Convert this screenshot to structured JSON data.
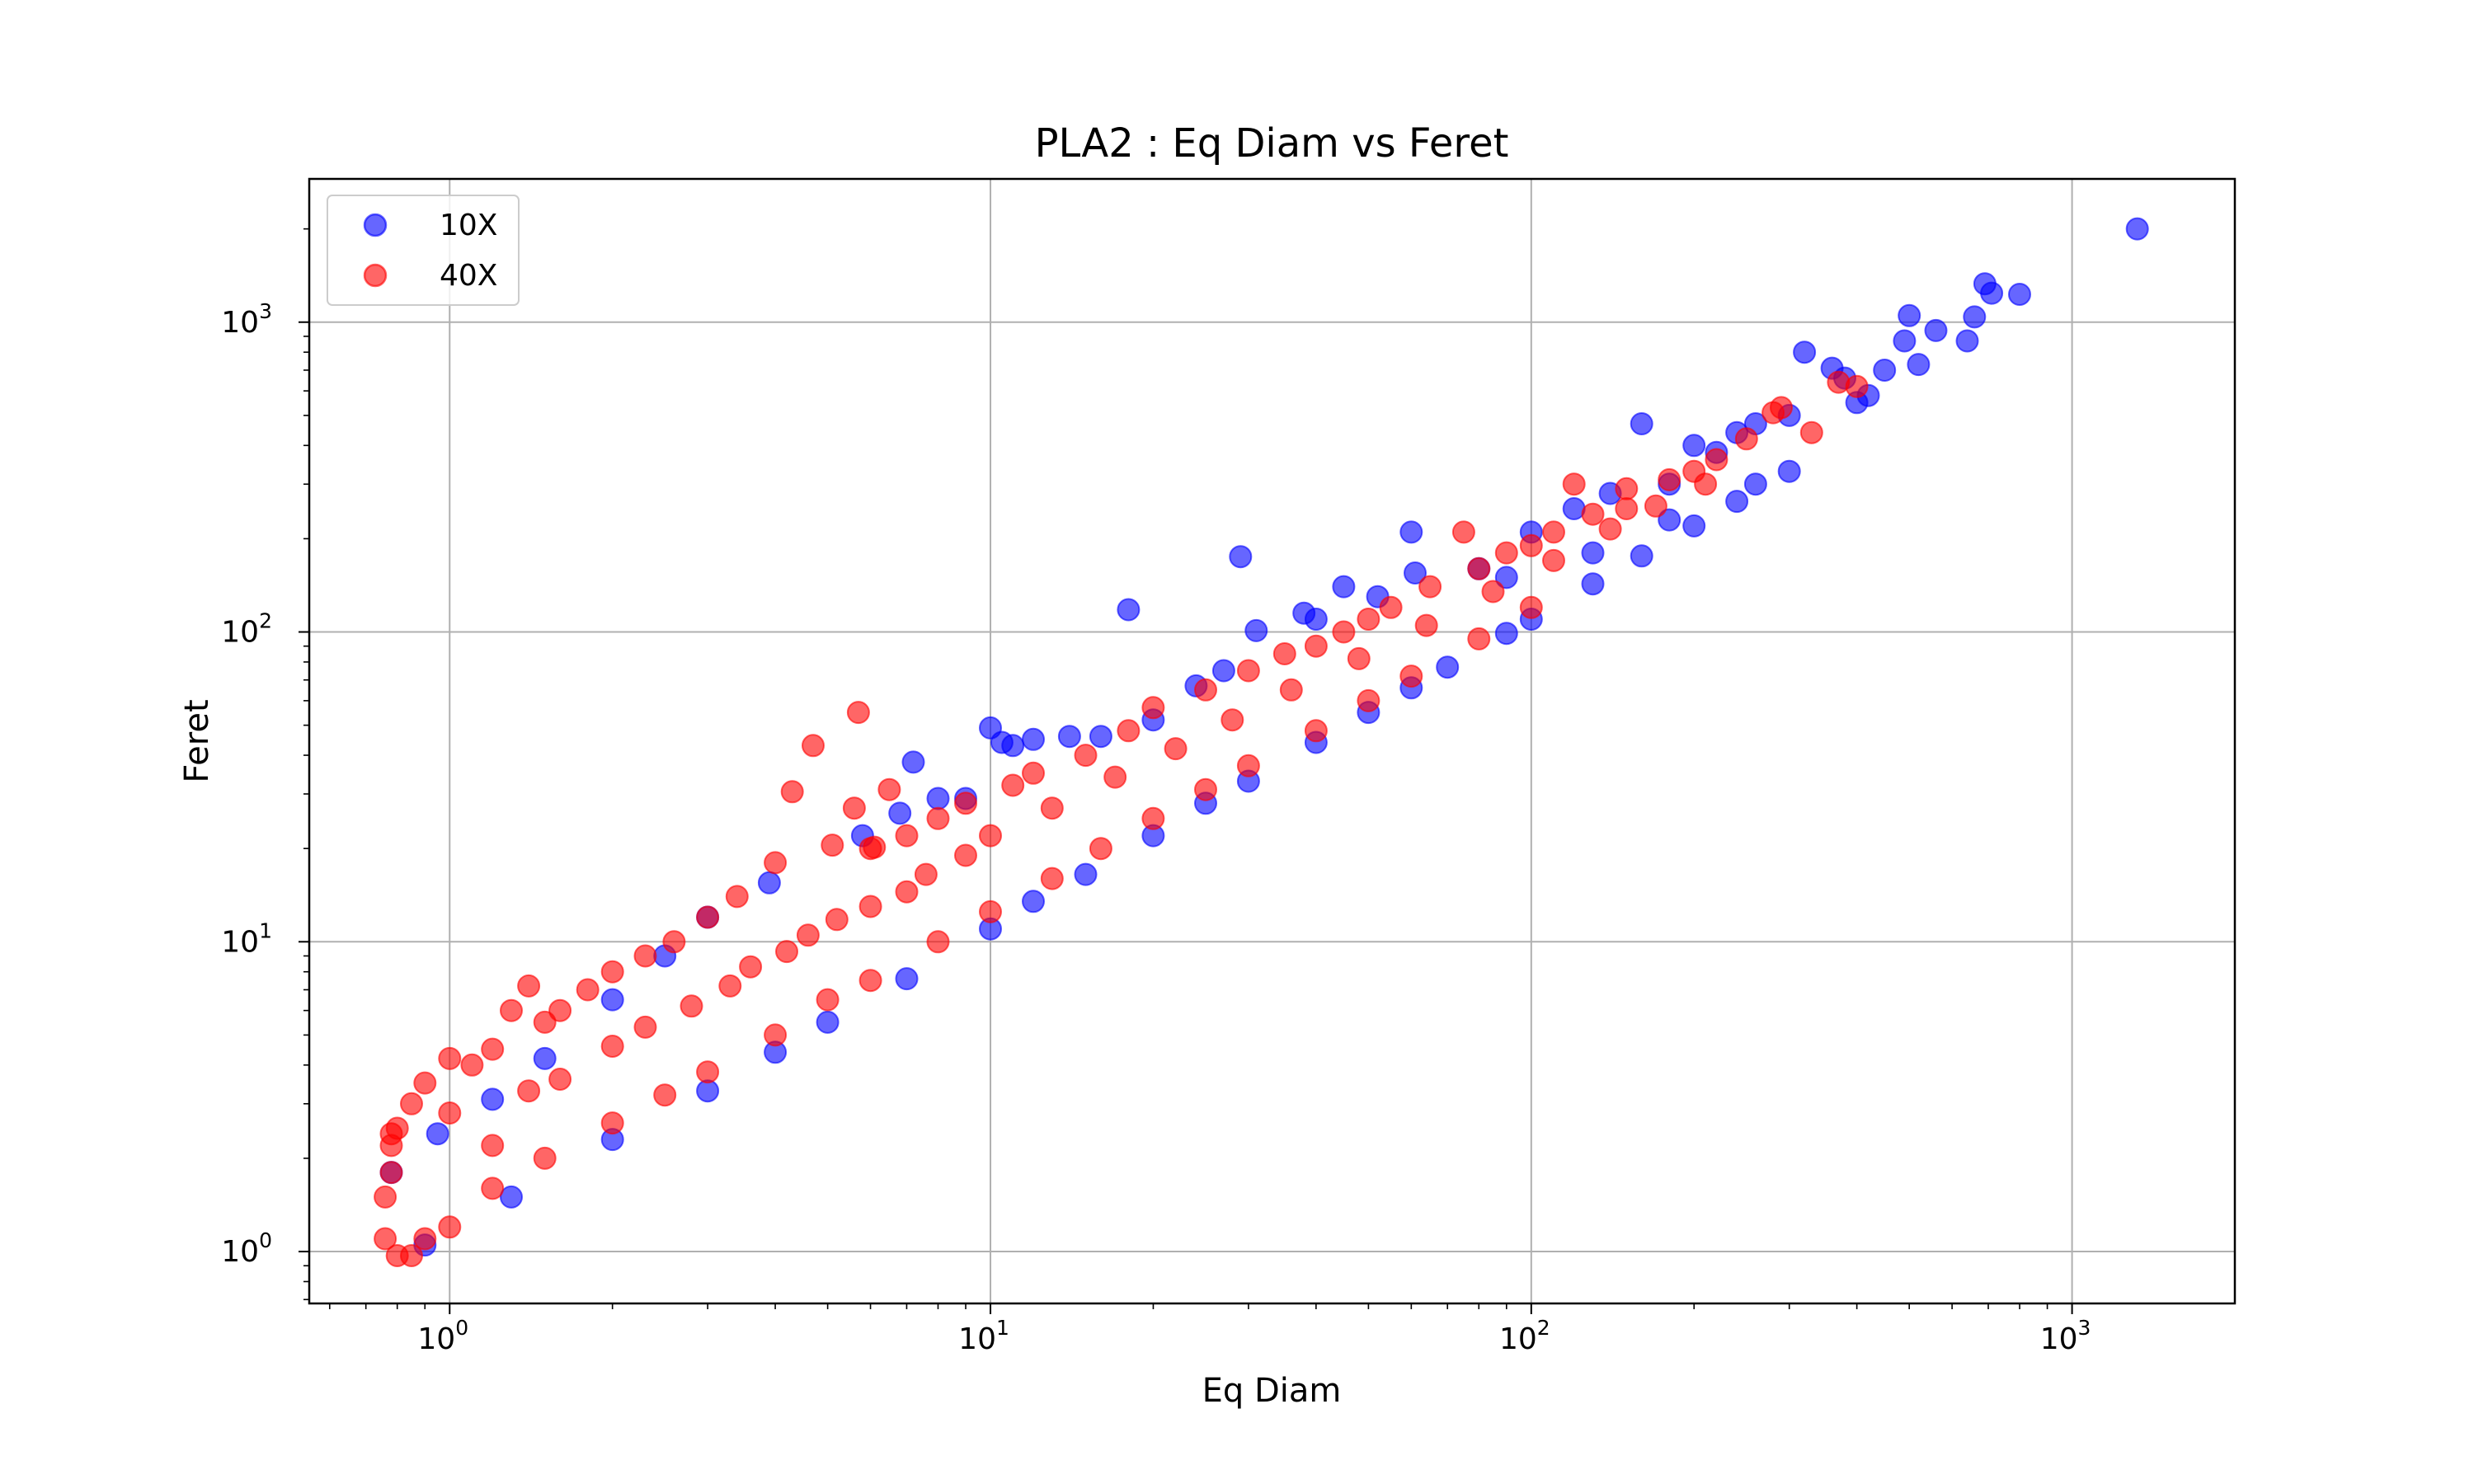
{
  "chart_data": {
    "type": "scatter",
    "title": "PLA2 : Eq Diam vs Feret",
    "xlabel": "Eq Diam",
    "ylabel": "Feret",
    "xscale": "log",
    "yscale": "log",
    "xlim": [
      0.55,
      2000
    ],
    "ylim": [
      0.68,
      2900
    ],
    "grid": true,
    "legend_position": "upper-left",
    "x_ticks": [
      {
        "base": "10",
        "exp": "0",
        "value": 1
      },
      {
        "base": "10",
        "exp": "1",
        "value": 10
      },
      {
        "base": "10",
        "exp": "2",
        "value": 100
      },
      {
        "base": "10",
        "exp": "3",
        "value": 1000
      }
    ],
    "y_ticks": [
      {
        "base": "10",
        "exp": "0",
        "value": 1
      },
      {
        "base": "10",
        "exp": "1",
        "value": 10
      },
      {
        "base": "10",
        "exp": "2",
        "value": 100
      },
      {
        "base": "10",
        "exp": "3",
        "value": 1000
      }
    ],
    "series": [
      {
        "name": "10X",
        "color": "#0000ff",
        "points": [
          [
            1320,
            2000
          ],
          [
            690,
            1330
          ],
          [
            710,
            1240
          ],
          [
            800,
            1230
          ],
          [
            500,
            1050
          ],
          [
            660,
            1040
          ],
          [
            560,
            940
          ],
          [
            490,
            870
          ],
          [
            640,
            870
          ],
          [
            520,
            730
          ],
          [
            450,
            700
          ],
          [
            320,
            800
          ],
          [
            360,
            710
          ],
          [
            380,
            660
          ],
          [
            400,
            550
          ],
          [
            420,
            580
          ],
          [
            300,
            500
          ],
          [
            260,
            470
          ],
          [
            240,
            440
          ],
          [
            200,
            400
          ],
          [
            220,
            380
          ],
          [
            300,
            330
          ],
          [
            160,
            470
          ],
          [
            260,
            300
          ],
          [
            180,
            300
          ],
          [
            140,
            280
          ],
          [
            120,
            250
          ],
          [
            100,
            210
          ],
          [
            60,
            210
          ],
          [
            61,
            155
          ],
          [
            80,
            160
          ],
          [
            45,
            140
          ],
          [
            52,
            130
          ],
          [
            40,
            110
          ],
          [
            29,
            175
          ],
          [
            18,
            118
          ],
          [
            38,
            115
          ],
          [
            31,
            101
          ],
          [
            27,
            75
          ],
          [
            24,
            67
          ],
          [
            20,
            52
          ],
          [
            16,
            46
          ],
          [
            14,
            46
          ],
          [
            12,
            45
          ],
          [
            10,
            49
          ],
          [
            10.5,
            44
          ],
          [
            11,
            43
          ],
          [
            9,
            29
          ],
          [
            8,
            29
          ],
          [
            7.2,
            38
          ],
          [
            6.8,
            26
          ],
          [
            5.8,
            22
          ],
          [
            3.9,
            15.5
          ],
          [
            3,
            12
          ],
          [
            2.5,
            9
          ],
          [
            2,
            6.5
          ],
          [
            1.5,
            4.2
          ],
          [
            1.2,
            3.1
          ],
          [
            0.95,
            2.4
          ],
          [
            0.78,
            1.8
          ],
          [
            3,
            3.3
          ],
          [
            5,
            5.5
          ],
          [
            7,
            7.6
          ],
          [
            10,
            11
          ],
          [
            15,
            16.5
          ],
          [
            20,
            22
          ],
          [
            30,
            33
          ],
          [
            40,
            44
          ],
          [
            50,
            55
          ],
          [
            70,
            77
          ],
          [
            100,
            110
          ],
          [
            130,
            143
          ],
          [
            160,
            176
          ],
          [
            200,
            220
          ],
          [
            240,
            264
          ],
          [
            2,
            2.3
          ],
          [
            1.3,
            1.5
          ],
          [
            0.9,
            1.05
          ],
          [
            4,
            4.4
          ],
          [
            12,
            13.5
          ],
          [
            25,
            28
          ],
          [
            60,
            66
          ],
          [
            90,
            99
          ],
          [
            130,
            180
          ],
          [
            180,
            230
          ],
          [
            90,
            150
          ]
        ]
      },
      {
        "name": "40X",
        "color": "#ff0000",
        "points": [
          [
            290,
            530
          ],
          [
            370,
            640
          ],
          [
            400,
            620
          ],
          [
            330,
            440
          ],
          [
            280,
            510
          ],
          [
            250,
            420
          ],
          [
            220,
            360
          ],
          [
            200,
            330
          ],
          [
            180,
            310
          ],
          [
            150,
            290
          ],
          [
            120,
            300
          ],
          [
            150,
            250
          ],
          [
            130,
            240
          ],
          [
            110,
            210
          ],
          [
            100,
            190
          ],
          [
            90,
            180
          ],
          [
            80,
            160
          ],
          [
            75,
            210
          ],
          [
            65,
            140
          ],
          [
            55,
            120
          ],
          [
            50,
            110
          ],
          [
            45,
            100
          ],
          [
            40,
            90
          ],
          [
            35,
            85
          ],
          [
            30,
            75
          ],
          [
            25,
            65
          ],
          [
            20,
            57
          ],
          [
            18,
            48
          ],
          [
            15,
            40
          ],
          [
            12,
            35
          ],
          [
            11,
            32
          ],
          [
            9,
            28
          ],
          [
            8,
            25
          ],
          [
            7,
            22
          ],
          [
            6,
            20
          ],
          [
            5.7,
            55
          ],
          [
            4.7,
            43
          ],
          [
            4.3,
            30.5
          ],
          [
            5.6,
            27
          ],
          [
            6.5,
            31
          ],
          [
            6.1,
            20.2
          ],
          [
            5.1,
            20.5
          ],
          [
            4,
            18
          ],
          [
            3.4,
            14
          ],
          [
            3,
            12
          ],
          [
            2.6,
            10
          ],
          [
            2.3,
            9
          ],
          [
            2,
            8
          ],
          [
            1.8,
            7
          ],
          [
            1.6,
            6
          ],
          [
            1.5,
            5.5
          ],
          [
            1.4,
            7.2
          ],
          [
            1.3,
            6
          ],
          [
            1.2,
            4.5
          ],
          [
            1.1,
            4
          ],
          [
            1,
            4.2
          ],
          [
            0.9,
            3.5
          ],
          [
            0.85,
            3
          ],
          [
            0.8,
            2.5
          ],
          [
            0.78,
            2.2
          ],
          [
            0.76,
            1.5
          ],
          [
            0.76,
            1.1
          ],
          [
            0.8,
            0.97
          ],
          [
            0.85,
            0.97
          ],
          [
            0.9,
            1.1
          ],
          [
            1,
            1.2
          ],
          [
            1.2,
            1.6
          ],
          [
            1.5,
            2
          ],
          [
            2,
            2.6
          ],
          [
            2.5,
            3.2
          ],
          [
            3,
            3.8
          ],
          [
            4,
            5
          ],
          [
            5,
            6.5
          ],
          [
            6,
            7.5
          ],
          [
            8,
            10
          ],
          [
            10,
            12.5
          ],
          [
            13,
            16
          ],
          [
            16,
            20
          ],
          [
            20,
            25
          ],
          [
            25,
            31
          ],
          [
            30,
            37
          ],
          [
            40,
            48
          ],
          [
            50,
            60
          ],
          [
            60,
            72
          ],
          [
            80,
            95
          ],
          [
            100,
            120
          ],
          [
            1,
            2.8
          ],
          [
            1.4,
            3.3
          ],
          [
            2,
            4.6
          ],
          [
            2.8,
            6.2
          ],
          [
            3.6,
            8.3
          ],
          [
            4.6,
            10.5
          ],
          [
            6,
            13
          ],
          [
            7.6,
            16.5
          ],
          [
            10,
            22
          ],
          [
            13,
            27
          ],
          [
            17,
            34
          ],
          [
            22,
            42
          ],
          [
            28,
            52
          ],
          [
            36,
            65
          ],
          [
            48,
            82
          ],
          [
            64,
            105
          ],
          [
            85,
            135
          ],
          [
            110,
            170
          ],
          [
            140,
            215
          ],
          [
            170,
            255
          ],
          [
            210,
            300
          ],
          [
            0.78,
            1.8
          ],
          [
            0.78,
            2.4
          ],
          [
            1.2,
            2.2
          ],
          [
            1.6,
            3.6
          ],
          [
            2.3,
            5.3
          ],
          [
            3.3,
            7.2
          ],
          [
            4.2,
            9.3
          ],
          [
            5.2,
            11.8
          ],
          [
            7,
            14.5
          ],
          [
            9,
            19
          ]
        ]
      }
    ]
  }
}
